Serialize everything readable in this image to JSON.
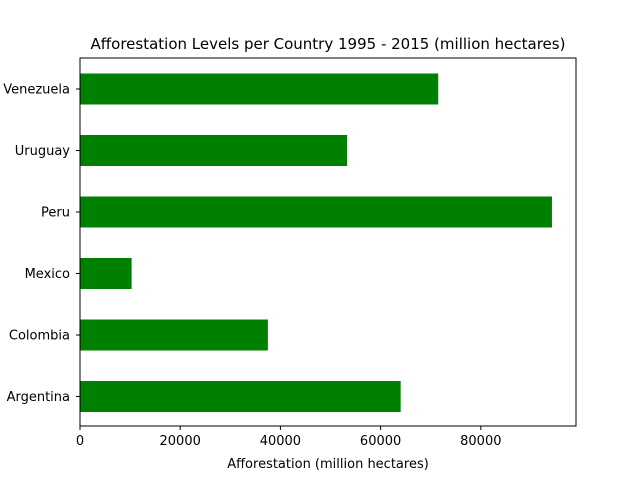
{
  "chart_data": {
    "type": "bar",
    "orientation": "horizontal",
    "title": "Afforestation Levels per Country 1995 - 2015 (million hectares)",
    "xlabel": "Afforestation (million hectares)",
    "ylabel": "",
    "categories": [
      "Argentina",
      "Colombia",
      "Mexico",
      "Peru",
      "Uruguay",
      "Venezuela"
    ],
    "values": [
      64000,
      37500,
      10300,
      94200,
      53300,
      71500
    ],
    "xlim": [
      0,
      99000
    ],
    "xticks": [
      0,
      20000,
      40000,
      60000,
      80000
    ],
    "grid": false,
    "legend": "none",
    "bar_color": "#008000"
  }
}
